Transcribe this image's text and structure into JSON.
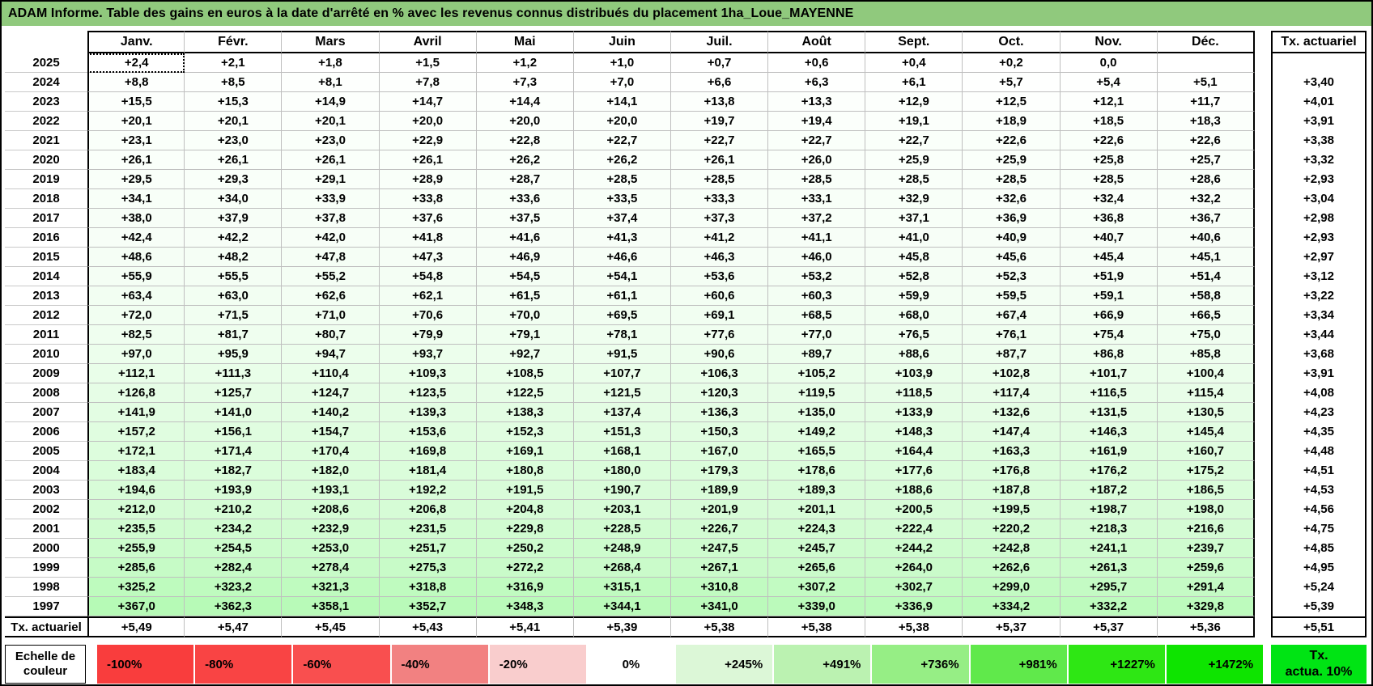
{
  "title": "ADAM Informe. Table des gains en euros à la date d'arrêté en % avec les revenus connus distribués du placement 1ha_Loue_MAYENNE",
  "tx_column_header": "Tx. actuariel",
  "tx_row_label": "Tx. actuariel",
  "colors": {
    "title_bg": "#90C97D",
    "grid": "#BFBFBF",
    "border": "#000000",
    "heat_green_max": "#00EE00"
  },
  "scale": {
    "label_line1": "Echelle de",
    "label_line2": "couleur",
    "cells": [
      {
        "label": "-100%",
        "color": "#F93D3D",
        "align": "left"
      },
      {
        "label": "-80%",
        "color": "#F94444",
        "align": "left"
      },
      {
        "label": "-60%",
        "color": "#F94F4F",
        "align": "left"
      },
      {
        "label": "-40%",
        "color": "#F28181",
        "align": "left"
      },
      {
        "label": "-20%",
        "color": "#F9CDCD",
        "align": "left"
      },
      {
        "label": "0%",
        "color": "#FFFFFF",
        "align": "center"
      },
      {
        "label": "+245%",
        "color": "#DCF7D7",
        "align": "right"
      },
      {
        "label": "+491%",
        "color": "#BBF2B1",
        "align": "right"
      },
      {
        "label": "+736%",
        "color": "#96EE85",
        "align": "right"
      },
      {
        "label": "+981%",
        "color": "#60E94B",
        "align": "right"
      },
      {
        "label": "+1227%",
        "color": "#2EE714",
        "align": "right"
      },
      {
        "label": "+1472%",
        "color": "#0EE400",
        "align": "right"
      }
    ],
    "tx_box": {
      "line1": "Tx.",
      "line2": "actua. 10%",
      "color": "#00E414"
    }
  },
  "chart_data": {
    "type": "heatmap",
    "title": "ADAM Informe. Table des gains en euros à la date d'arrêté en % avec les revenus connus distribués du placement 1ha_Loue_MAYENNE",
    "columns": [
      "Janv.",
      "Févr.",
      "Mars",
      "Avril",
      "Mai",
      "Juin",
      "Juil.",
      "Août",
      "Sept.",
      "Oct.",
      "Nov.",
      "Déc."
    ],
    "rows": [
      "2025",
      "2024",
      "2023",
      "2022",
      "2021",
      "2020",
      "2019",
      "2018",
      "2017",
      "2016",
      "2015",
      "2014",
      "2013",
      "2012",
      "2011",
      "2010",
      "2009",
      "2008",
      "2007",
      "2006",
      "2005",
      "2004",
      "2003",
      "2002",
      "2001",
      "2000",
      "1999",
      "1998",
      "1997"
    ],
    "values_pct": [
      [
        2.4,
        2.1,
        1.8,
        1.5,
        1.2,
        1.0,
        0.7,
        0.6,
        0.4,
        0.2,
        0.0,
        null
      ],
      [
        8.8,
        8.5,
        8.1,
        7.8,
        7.3,
        7.0,
        6.6,
        6.3,
        6.1,
        5.7,
        5.4,
        5.1
      ],
      [
        15.5,
        15.3,
        14.9,
        14.7,
        14.4,
        14.1,
        13.8,
        13.3,
        12.9,
        12.5,
        12.1,
        11.7
      ],
      [
        20.1,
        20.1,
        20.1,
        20.0,
        20.0,
        20.0,
        19.7,
        19.4,
        19.1,
        18.9,
        18.5,
        18.3
      ],
      [
        23.1,
        23.0,
        23.0,
        22.9,
        22.8,
        22.7,
        22.7,
        22.7,
        22.7,
        22.6,
        22.6,
        22.6
      ],
      [
        26.1,
        26.1,
        26.1,
        26.1,
        26.2,
        26.2,
        26.1,
        26.0,
        25.9,
        25.9,
        25.8,
        25.7
      ],
      [
        29.5,
        29.3,
        29.1,
        28.9,
        28.7,
        28.5,
        28.5,
        28.5,
        28.5,
        28.5,
        28.5,
        28.6
      ],
      [
        34.1,
        34.0,
        33.9,
        33.8,
        33.6,
        33.5,
        33.3,
        33.1,
        32.9,
        32.6,
        32.4,
        32.2
      ],
      [
        38.0,
        37.9,
        37.8,
        37.6,
        37.5,
        37.4,
        37.3,
        37.2,
        37.1,
        36.9,
        36.8,
        36.7
      ],
      [
        42.4,
        42.2,
        42.0,
        41.8,
        41.6,
        41.3,
        41.2,
        41.1,
        41.0,
        40.9,
        40.7,
        40.6
      ],
      [
        48.6,
        48.2,
        47.8,
        47.3,
        46.9,
        46.6,
        46.3,
        46.0,
        45.8,
        45.6,
        45.4,
        45.1
      ],
      [
        55.9,
        55.5,
        55.2,
        54.8,
        54.5,
        54.1,
        53.6,
        53.2,
        52.8,
        52.3,
        51.9,
        51.4
      ],
      [
        63.4,
        63.0,
        62.6,
        62.1,
        61.5,
        61.1,
        60.6,
        60.3,
        59.9,
        59.5,
        59.1,
        58.8
      ],
      [
        72.0,
        71.5,
        71.0,
        70.6,
        70.0,
        69.5,
        69.1,
        68.5,
        68.0,
        67.4,
        66.9,
        66.5
      ],
      [
        82.5,
        81.7,
        80.7,
        79.9,
        79.1,
        78.1,
        77.6,
        77.0,
        76.5,
        76.1,
        75.4,
        75.0
      ],
      [
        97.0,
        95.9,
        94.7,
        93.7,
        92.7,
        91.5,
        90.6,
        89.7,
        88.6,
        87.7,
        86.8,
        85.8
      ],
      [
        112.1,
        111.3,
        110.4,
        109.3,
        108.5,
        107.7,
        106.3,
        105.2,
        103.9,
        102.8,
        101.7,
        100.4
      ],
      [
        126.8,
        125.7,
        124.7,
        123.5,
        122.5,
        121.5,
        120.3,
        119.5,
        118.5,
        117.4,
        116.5,
        115.4
      ],
      [
        141.9,
        141.0,
        140.2,
        139.3,
        138.3,
        137.4,
        136.3,
        135.0,
        133.9,
        132.6,
        131.5,
        130.5
      ],
      [
        157.2,
        156.1,
        154.7,
        153.6,
        152.3,
        151.3,
        150.3,
        149.2,
        148.3,
        147.4,
        146.3,
        145.4
      ],
      [
        172.1,
        171.4,
        170.4,
        169.8,
        169.1,
        168.1,
        167.0,
        165.5,
        164.4,
        163.3,
        161.9,
        160.7
      ],
      [
        183.4,
        182.7,
        182.0,
        181.4,
        180.8,
        180.0,
        179.3,
        178.6,
        177.6,
        176.8,
        176.2,
        175.2
      ],
      [
        194.6,
        193.9,
        193.1,
        192.2,
        191.5,
        190.7,
        189.9,
        189.3,
        188.6,
        187.8,
        187.2,
        186.5
      ],
      [
        212.0,
        210.2,
        208.6,
        206.8,
        204.8,
        203.1,
        201.9,
        201.1,
        200.5,
        199.5,
        198.7,
        198.0
      ],
      [
        235.5,
        234.2,
        232.9,
        231.5,
        229.8,
        228.5,
        226.7,
        224.3,
        222.4,
        220.2,
        218.3,
        216.6
      ],
      [
        255.9,
        254.5,
        253.0,
        251.7,
        250.2,
        248.9,
        247.5,
        245.7,
        244.2,
        242.8,
        241.1,
        239.7
      ],
      [
        285.6,
        282.4,
        278.4,
        275.3,
        272.2,
        268.4,
        267.1,
        265.6,
        264.0,
        262.6,
        261.3,
        259.6
      ],
      [
        325.2,
        323.2,
        321.3,
        318.8,
        316.9,
        315.1,
        310.8,
        307.2,
        302.7,
        299.0,
        295.7,
        291.4
      ],
      [
        367.0,
        362.3,
        358.1,
        352.7,
        348.3,
        344.1,
        341.0,
        339.0,
        336.9,
        334.2,
        332.2,
        329.8
      ]
    ],
    "tx_actuariel_by_year": [
      null,
      3.4,
      4.01,
      3.91,
      3.38,
      3.32,
      2.93,
      3.04,
      2.98,
      2.93,
      2.97,
      3.12,
      3.22,
      3.34,
      3.44,
      3.68,
      3.91,
      4.08,
      4.23,
      4.35,
      4.48,
      4.51,
      4.53,
      4.56,
      4.75,
      4.85,
      4.95,
      5.24,
      5.39
    ],
    "tx_actuariel_by_month": [
      5.49,
      5.47,
      5.45,
      5.43,
      5.41,
      5.39,
      5.38,
      5.38,
      5.38,
      5.37,
      5.37,
      5.36
    ],
    "tx_actuariel_overall": 5.51,
    "color_scale": {
      "min_pct": -100,
      "max_pct": 1472,
      "zero_color": "#FFFFFF",
      "max_color": "#00EE00"
    },
    "legend_position": "bottom",
    "grid": true
  }
}
